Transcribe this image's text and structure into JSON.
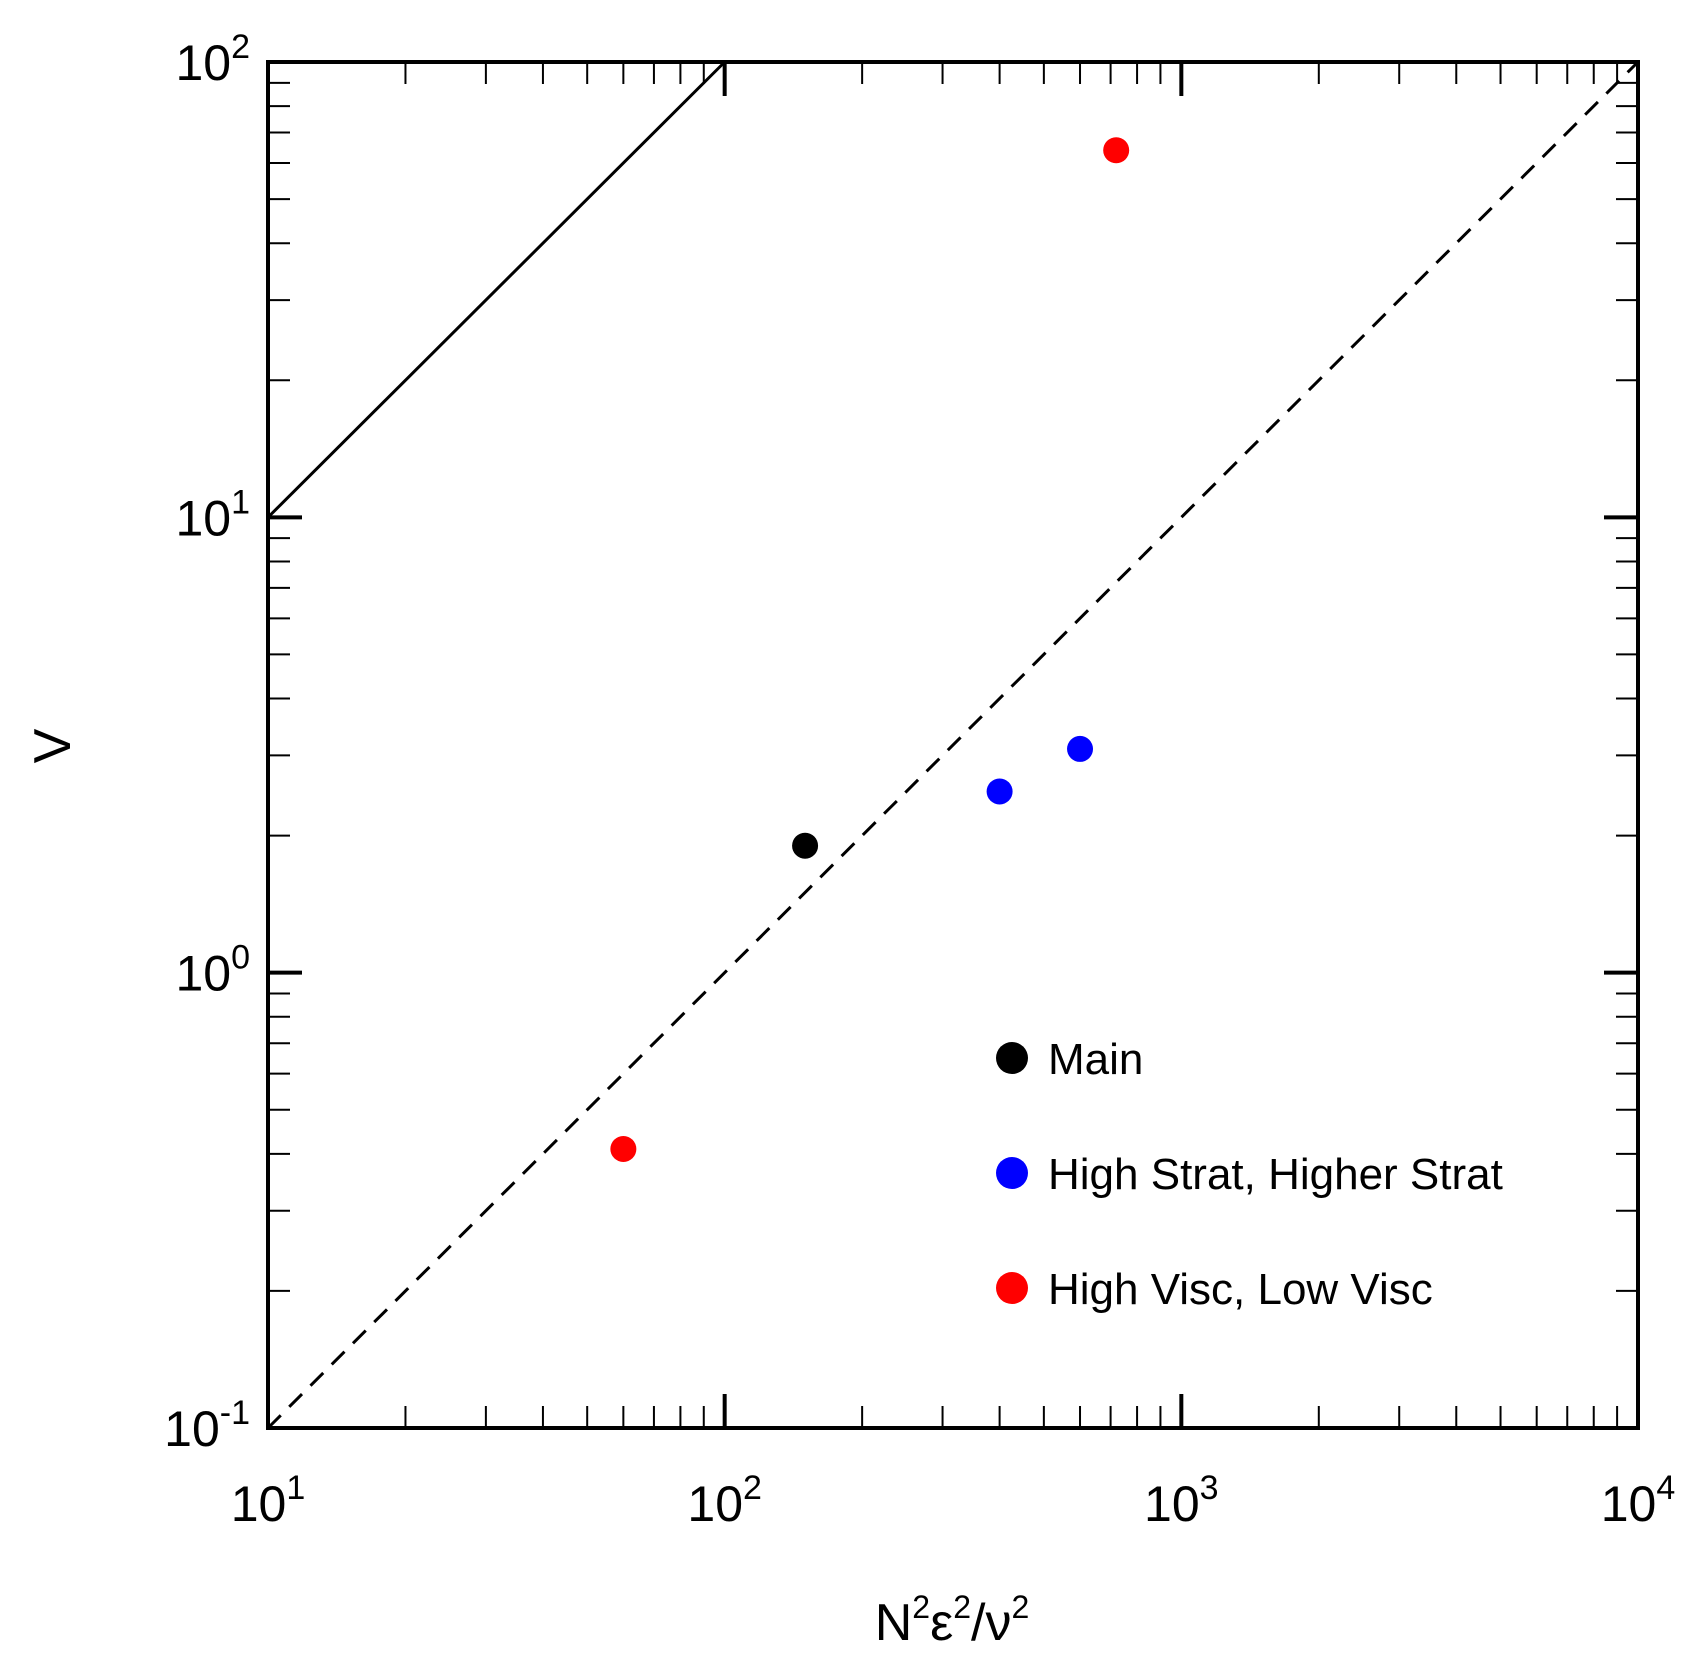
{
  "chart_data": {
    "type": "scatter",
    "title": "",
    "xlabel": {
      "base": "N",
      "sup1": "2",
      "mid": "ε",
      "sup2": "2",
      "sep": "/ν",
      "sup3": "2"
    },
    "ylabel": "V",
    "xscale": "log",
    "yscale": "log",
    "xlim": [
      10,
      10000
    ],
    "ylim": [
      0.1,
      100
    ],
    "x_ticks": [
      {
        "base": "10",
        "exp": "1",
        "value": 10
      },
      {
        "base": "10",
        "exp": "2",
        "value": 100
      },
      {
        "base": "10",
        "exp": "3",
        "value": 1000
      },
      {
        "base": "10",
        "exp": "4",
        "value": 10000
      }
    ],
    "y_ticks": [
      {
        "base": "10",
        "exp": "-1",
        "value": 0.1
      },
      {
        "base": "10",
        "exp": "0",
        "value": 1
      },
      {
        "base": "10",
        "exp": "1",
        "value": 10
      },
      {
        "base": "10",
        "exp": "2",
        "value": 100
      }
    ],
    "reference_lines": [
      {
        "name": "solid",
        "style": "solid",
        "x": [
          10,
          100
        ],
        "y": [
          10,
          100
        ]
      },
      {
        "name": "dashed",
        "style": "dashed",
        "x": [
          10,
          10000
        ],
        "y": [
          0.1,
          100
        ]
      }
    ],
    "series": [
      {
        "name": "Main",
        "color": "#000000",
        "points": [
          {
            "x": 150,
            "y": 1.9
          }
        ]
      },
      {
        "name": "High Strat, Higher Strat",
        "color": "#0000ff",
        "points": [
          {
            "x": 400,
            "y": 2.5
          },
          {
            "x": 600,
            "y": 3.1
          }
        ]
      },
      {
        "name": "High Visc, Low Visc",
        "color": "#ff0000",
        "points": [
          {
            "x": 60,
            "y": 0.41
          },
          {
            "x": 720,
            "y": 64
          }
        ]
      }
    ],
    "legend_position": "bottom-right"
  }
}
